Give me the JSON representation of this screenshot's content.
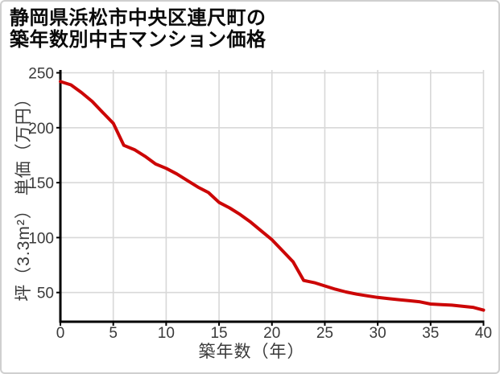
{
  "title": {
    "line1": "静岡県浜松市中央区連尺町の",
    "line2": "築年数別中古マンション価格"
  },
  "chart_data": {
    "type": "line",
    "title": "静岡県浜松市中央区連尺町の築年数別中古マンション価格",
    "xlabel": "築年数（年）",
    "ylabel": "坪（3.3m²） 単価（万円）",
    "x": [
      0,
      1,
      2,
      3,
      4,
      5,
      6,
      7,
      8,
      9,
      10,
      11,
      12,
      13,
      14,
      15,
      16,
      17,
      18,
      19,
      20,
      21,
      22,
      23,
      24,
      25,
      26,
      27,
      28,
      29,
      30,
      31,
      32,
      33,
      34,
      35,
      36,
      37,
      38,
      39,
      40
    ],
    "values": [
      242,
      239,
      232,
      224,
      214,
      204,
      184,
      180,
      174,
      167,
      163,
      158,
      152,
      146,
      141,
      132,
      127,
      121,
      114,
      106,
      98,
      88,
      78,
      61,
      59,
      56,
      53,
      50.5,
      48.5,
      47,
      45.5,
      44.5,
      43.5,
      42.5,
      41.5,
      39.5,
      39,
      38.5,
      37.5,
      36.5,
      34
    ],
    "xticks": [
      0,
      5,
      10,
      15,
      20,
      25,
      30,
      35,
      40
    ],
    "yticks": [
      50,
      100,
      150,
      200,
      250
    ],
    "xlim": [
      0,
      40
    ],
    "ylim": [
      23,
      253
    ],
    "grid": true,
    "legend": false
  },
  "colors": {
    "line": "#cc0606",
    "grid": "#d8d8d8",
    "axis": "#000000",
    "tick_label": "#3a3a3a",
    "border": "#cfcfcf",
    "background": "#ffffff"
  }
}
